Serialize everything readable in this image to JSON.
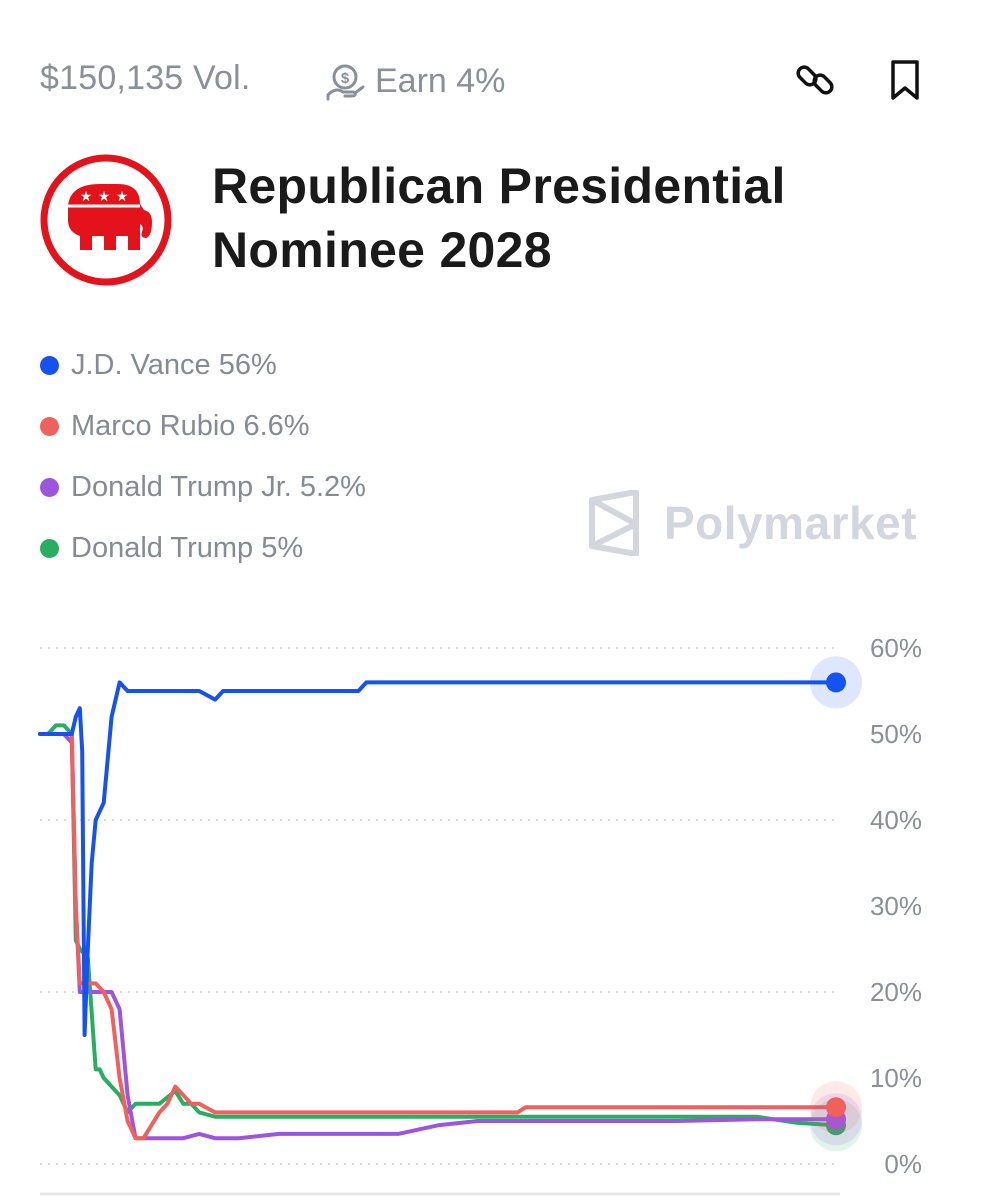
{
  "header": {
    "volume": "$150,135 Vol.",
    "earn": "Earn 4%",
    "title_line1": "Republican Presidential",
    "title_line2": "Nominee 2028"
  },
  "icons": {
    "earn": "earn-coin-icon",
    "link": "link-icon",
    "bookmark": "bookmark-icon",
    "logo": "republican-elephant-logo",
    "brand": "polymarket-logo-icon"
  },
  "brand": {
    "name": "Polymarket"
  },
  "legend": [
    {
      "label": "J.D. Vance 56%",
      "color": "#1652f0"
    },
    {
      "label": "Marco Rubio 6.6%",
      "color": "#f0605d"
    },
    {
      "label": "Donald Trump Jr. 5.2%",
      "color": "#9d55e0"
    },
    {
      "label": "Donald Trump 5%",
      "color": "#27ae60"
    }
  ],
  "chart_data": {
    "type": "line",
    "title": "",
    "xlabel": "",
    "ylabel": "",
    "ylim": [
      0,
      60
    ],
    "yticks": [
      "60%",
      "50%",
      "40%",
      "30%",
      "20%",
      "10%",
      "0%"
    ],
    "ytick_values": [
      60,
      50,
      40,
      30,
      20,
      10,
      0
    ],
    "grid": true,
    "series": [
      {
        "name": "J.D. Vance",
        "color": "#1652f0",
        "x": [
          0,
          4,
          4.5,
          5,
          5.3,
          5.6,
          6,
          6.5,
          7,
          8,
          9,
          10,
          11,
          12,
          13,
          14,
          20,
          21,
          22,
          23,
          24,
          40,
          41,
          100
        ],
        "y": [
          50,
          50,
          52,
          53,
          48,
          15,
          25,
          35,
          40,
          42,
          52,
          56,
          55,
          55,
          55,
          55,
          55,
          54.5,
          54,
          55,
          55,
          55,
          56,
          56
        ]
      },
      {
        "name": "Marco Rubio",
        "color": "#f0605d",
        "x": [
          0,
          3,
          4,
          4.5,
          5,
          7,
          8,
          9,
          10,
          11,
          12,
          13,
          15,
          16,
          17,
          18,
          19,
          20,
          21,
          22,
          25,
          30,
          35,
          40,
          45,
          55,
          60,
          61,
          70,
          80,
          90,
          100
        ],
        "y": [
          50,
          50,
          50,
          30,
          21,
          21,
          20,
          18,
          10,
          5,
          3,
          3,
          6,
          7,
          9,
          8,
          7,
          7,
          6.5,
          6,
          6,
          6,
          6,
          6,
          6,
          6,
          6,
          6.6,
          6.6,
          6.6,
          6.6,
          6.6
        ]
      },
      {
        "name": "Donald Trump Jr.",
        "color": "#9d55e0",
        "x": [
          0,
          3,
          4,
          4.5,
          5,
          6,
          7,
          8,
          9,
          10,
          11,
          12,
          13,
          15,
          18,
          20,
          22,
          25,
          30,
          35,
          40,
          45,
          50,
          55,
          60,
          70,
          80,
          90,
          100
        ],
        "y": [
          50,
          50,
          49,
          30,
          20,
          20,
          20,
          20,
          20,
          18,
          8,
          3,
          3,
          3,
          3,
          3.5,
          3,
          3,
          3.5,
          3.5,
          3.5,
          3.5,
          4.5,
          5,
          5,
          5,
          5,
          5.2,
          5.2
        ]
      },
      {
        "name": "Donald Trump",
        "color": "#27ae60",
        "x": [
          0,
          1,
          2,
          3,
          4,
          4.5,
          5,
          6,
          7,
          7.5,
          8,
          9,
          10,
          11,
          12,
          13,
          14,
          15,
          17,
          18,
          19,
          20,
          22,
          25,
          28,
          30,
          35,
          40,
          45,
          50,
          55,
          60,
          70,
          80,
          90,
          95,
          100
        ],
        "y": [
          50,
          50,
          51,
          51,
          50,
          26,
          25,
          24,
          11,
          11,
          10,
          9,
          8,
          6,
          7,
          7,
          7,
          7,
          8.5,
          7,
          7,
          6,
          5.5,
          5.5,
          5.5,
          5.5,
          5.5,
          5.5,
          5.5,
          5.5,
          5.5,
          5.5,
          5.5,
          5.5,
          5.5,
          4.8,
          4.5
        ]
      }
    ]
  }
}
